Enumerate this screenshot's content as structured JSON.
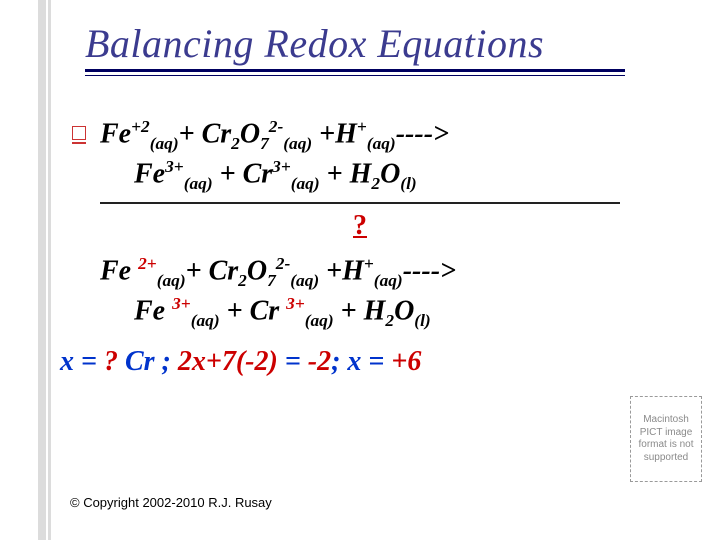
{
  "title": "Balancing Redox Equations",
  "eq1_line1": {
    "Fe": "Fe",
    "Fe_sup": "+2",
    "Fe_sub": "(aq)",
    "plus1": "+ ",
    "Cr2O7": "Cr",
    "Cr_sub1": "2",
    "O": "O",
    "O_sub": "7",
    "O_sup": "2-",
    "O_sub2": "(aq)",
    "plus2": " +H",
    "H_sup": "+",
    "H_sub": "(aq)",
    "arrow": "---->"
  },
  "eq1_line2": {
    "Fe": "Fe",
    "Fe_sup": "3+",
    "Fe_sub": "(aq)",
    "plus1": " + Cr",
    "Cr_sup": "3+",
    "Cr_sub": "(aq)",
    "plus2": " + H",
    "H_sub1": "2",
    "O": "O",
    "O_sub": "(l)"
  },
  "qmark": "?",
  "eq2_line1": {
    "Fe": "Fe ",
    "Fe_sup": "2+",
    "Fe_sub": "(aq)",
    "plus1": "+ ",
    "Cr": "Cr",
    "Cr_sub1": "2",
    "O": "O",
    "O_sub": "7",
    "O_sup": "2-",
    "O_sub2": "(aq)",
    "plus2": " +H",
    "H_sup": "+",
    "H_sub": "(aq)",
    "arrow": "---->"
  },
  "eq2_line2": {
    "Fe": "Fe ",
    "Fe_sup": "3+",
    "Fe_sub": "(aq)",
    "plus1": " + Cr ",
    "Cr_sup": "3+",
    "Cr_sub": "(aq)",
    "plus2": " + H",
    "H_sub1": "2",
    "O": "O",
    "O_sub": "(l)"
  },
  "solve": {
    "p1": "x = ",
    "q": "?",
    "p2": " Cr ; ",
    "p3": "2x+7(-2)",
    "p4": " = ",
    "p5": "-2",
    "p6": ";  x = ",
    "p7": "+6"
  },
  "copyright": "© Copyright 2002-2010 R.J. Rusay",
  "pict": "Macintosh PICT image format is not supported",
  "colors": {
    "title": "#3b3b8f",
    "red": "#cc0000",
    "blue": "#0033cc",
    "deco": "#dcdcdc"
  },
  "fontsizes": {
    "title": 40,
    "eq": 28,
    "copyright": 13,
    "pict": 10
  }
}
